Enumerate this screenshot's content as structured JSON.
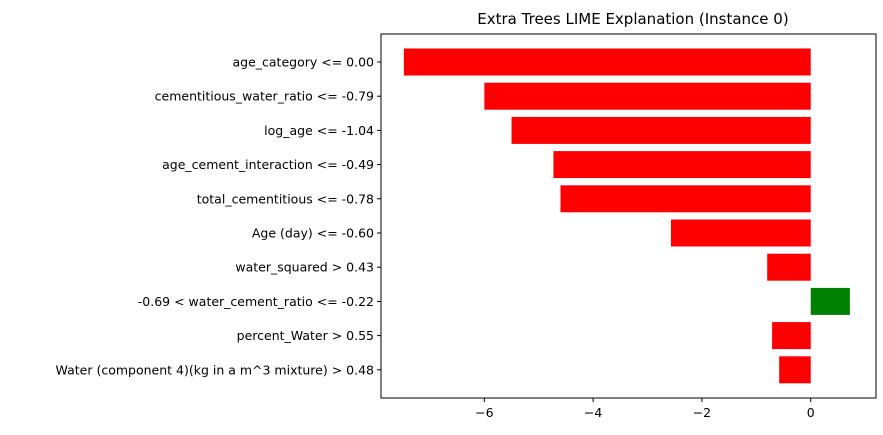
{
  "chart_data": {
    "type": "bar",
    "orientation": "horizontal",
    "title": "Extra Trees LIME Explanation (Instance 0)",
    "xlabel": "",
    "ylabel": "",
    "xlim": [
      -7.9,
      1.2
    ],
    "xticks": [
      -6,
      -4,
      -2,
      0
    ],
    "xtick_labels": [
      "−6",
      "−4",
      "−2",
      "0"
    ],
    "grid": false,
    "categories": [
      "age_category <= 0.00",
      "cementitious_water_ratio <= -0.79",
      "log_age <= -1.04",
      "age_cement_interaction <= -0.49",
      "total_cementitious <= -0.78",
      "Age (day) <= -0.60",
      "water_squared > 0.43",
      "-0.69 < water_cement_ratio <= -0.22",
      "percent_Water > 0.55",
      "Water  (component 4)(kg in a m^3 mixture) > 0.48"
    ],
    "values": [
      -7.48,
      -6.0,
      -5.5,
      -4.73,
      -4.6,
      -2.57,
      -0.8,
      0.72,
      -0.71,
      -0.58
    ],
    "colors": {
      "negative": "#ff0000",
      "positive": "#008000",
      "axis": "#000000"
    }
  }
}
